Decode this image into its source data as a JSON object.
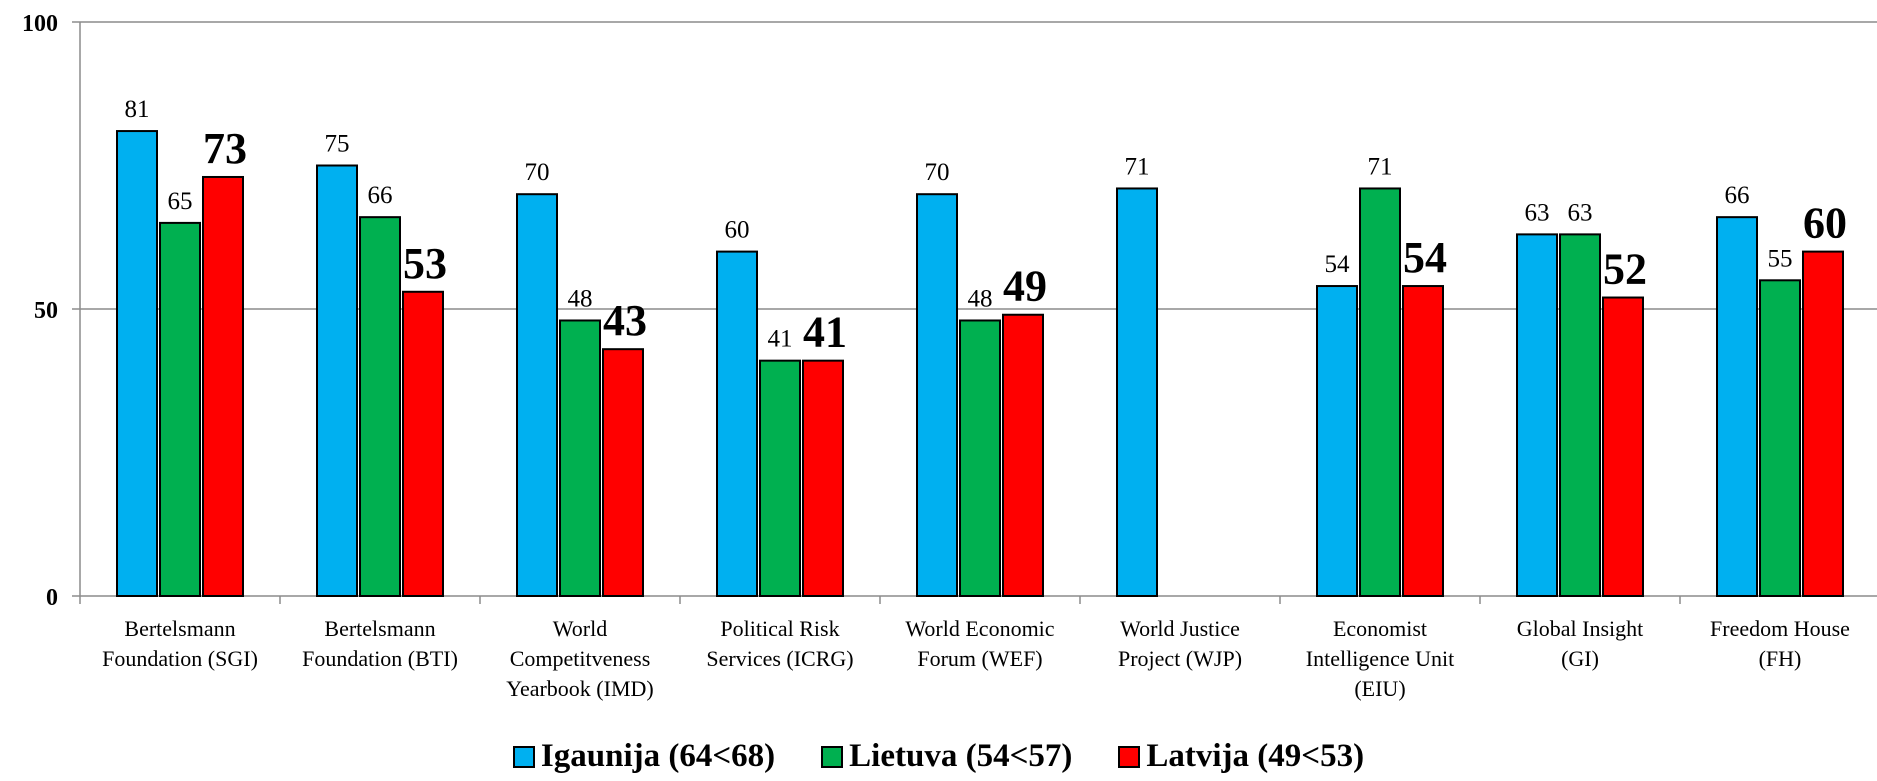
{
  "chart_data": {
    "type": "bar",
    "categories": [
      [
        "Bertelsmann",
        "Foundation (SGI)"
      ],
      [
        "Bertelsmann",
        "Foundation (BTI)"
      ],
      [
        "World",
        "Competitveness",
        "Yearbook (IMD)"
      ],
      [
        "Political Risk",
        "Services (ICRG)"
      ],
      [
        "World Economic",
        "Forum (WEF)"
      ],
      [
        "World Justice",
        "Project (WJP)"
      ],
      [
        "Economist",
        "Intelligence Unit",
        "(EIU)"
      ],
      [
        "Global Insight",
        "(GI)"
      ],
      [
        "Freedom House",
        "(FH)"
      ]
    ],
    "series": [
      {
        "name": "Igaunija (64<68)",
        "color": "#00B0F0",
        "values": [
          81,
          75,
          70,
          60,
          70,
          71,
          54,
          63,
          66
        ],
        "label_style": "normal"
      },
      {
        "name": "Lietuva (54<57)",
        "color": "#00B050",
        "values": [
          65,
          66,
          48,
          41,
          48,
          null,
          71,
          63,
          55
        ],
        "label_style": "normal"
      },
      {
        "name": "Latvija (49<53)",
        "color": "#FF0000",
        "values": [
          73,
          53,
          43,
          41,
          49,
          null,
          54,
          52,
          60
        ],
        "label_style": "bold"
      }
    ],
    "ylim": [
      0,
      100
    ],
    "yticks": [
      0,
      50,
      100
    ],
    "grid": true,
    "legend": "bottom",
    "title": "",
    "xlabel": "",
    "ylabel": ""
  }
}
